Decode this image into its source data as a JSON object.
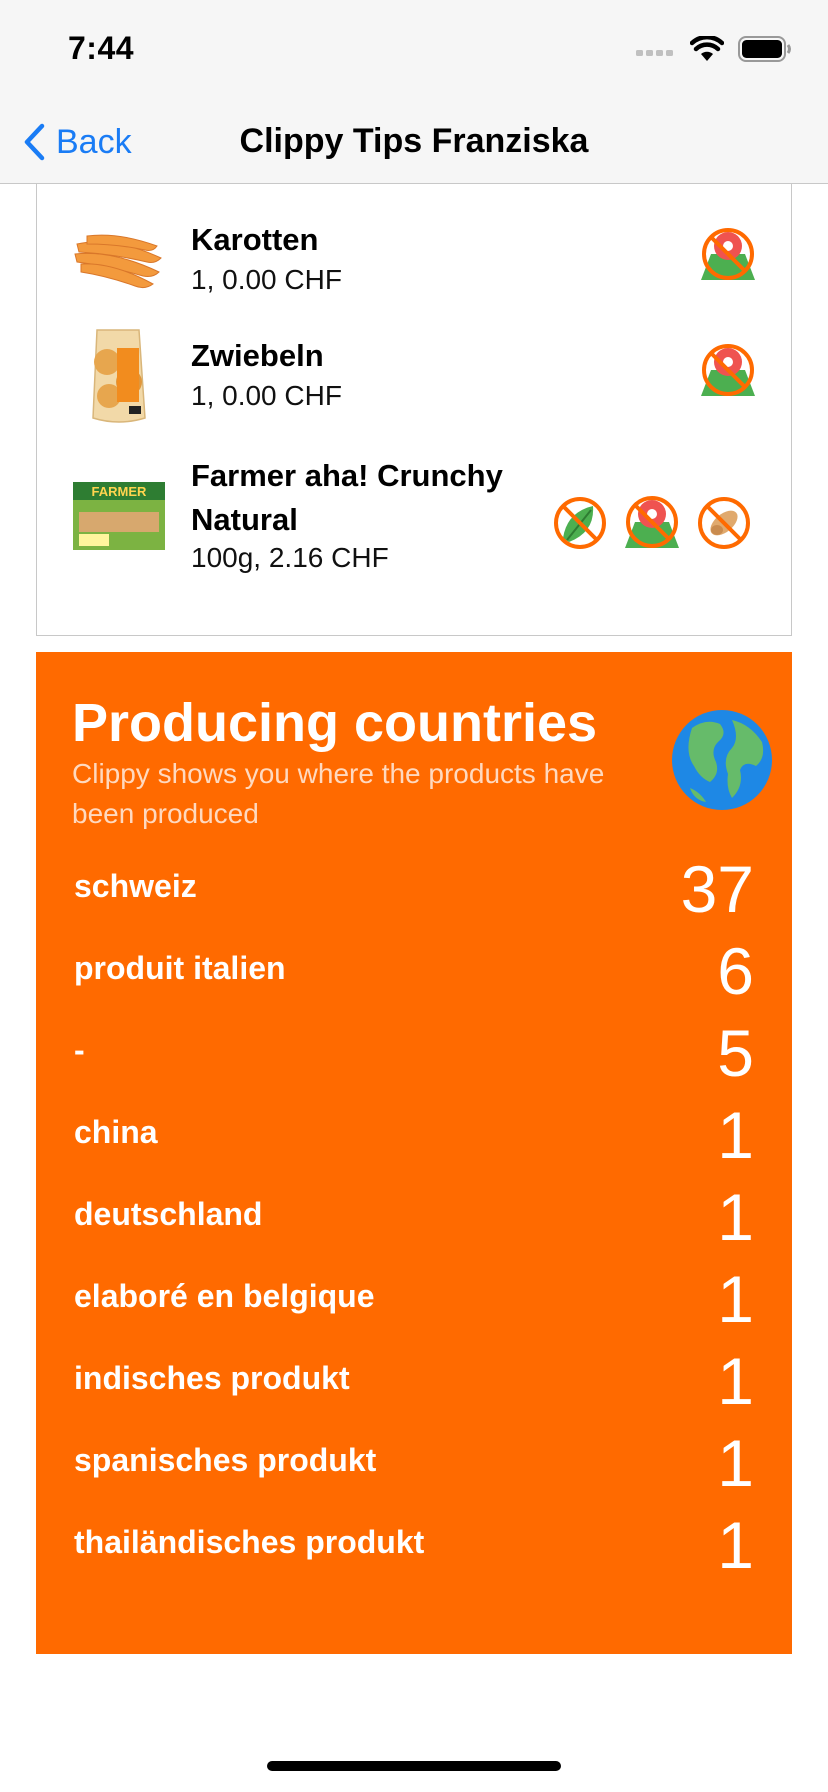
{
  "status": {
    "time": "7:44"
  },
  "nav": {
    "back_label": "Back",
    "title": "Clippy Tips Franziska"
  },
  "products": [
    {
      "name_line1": "Karotten",
      "name_line2": "",
      "detail": "1, 0.00 CHF"
    },
    {
      "name_line1": "Zwiebeln",
      "name_line2": "",
      "detail": "1, 0.00 CHF"
    },
    {
      "name_line1": "Farmer aha! Crunchy",
      "name_line2": "Natural",
      "detail": "100g, 2.16 CHF"
    }
  ],
  "countries": {
    "title": "Producing countries",
    "subtitle": "Clippy shows you where the products have been produced",
    "rows": [
      {
        "name": "schweiz",
        "count": "37"
      },
      {
        "name": "produit italien",
        "count": "6"
      },
      {
        "name": "-",
        "count": "5"
      },
      {
        "name": "china",
        "count": "1"
      },
      {
        "name": "deutschland",
        "count": "1"
      },
      {
        "name": "elaboré en belgique",
        "count": "1"
      },
      {
        "name": "indisches produkt",
        "count": "1"
      },
      {
        "name": "spanisches produkt",
        "count": "1"
      },
      {
        "name": "thailändisches produkt",
        "count": "1"
      }
    ]
  },
  "colors": {
    "accent": "#ff6a00",
    "link": "#1a7cf5",
    "nav_bg": "#f6f6f6"
  },
  "icons": {
    "status": [
      "cellular-signal-icon",
      "wifi-icon",
      "battery-icon"
    ],
    "badges": [
      "no-local-origin-icon",
      "no-vegetable-icon",
      "no-nuts-icon"
    ]
  }
}
